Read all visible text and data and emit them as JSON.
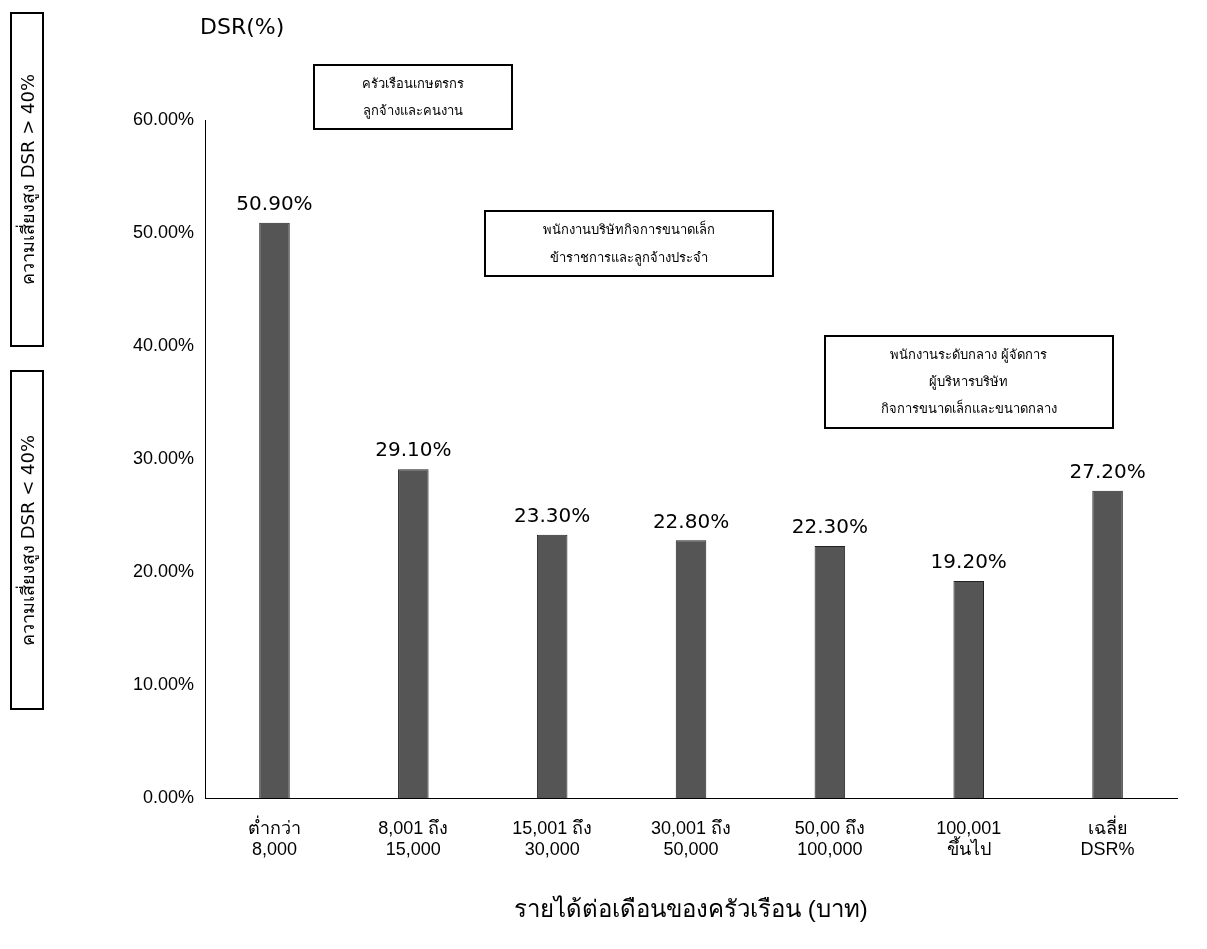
{
  "chart_data": {
    "type": "bar",
    "ylabel": "DSR(%)",
    "xlabel": "รายได้ต่อเดือนของครัวเรือน (บาท)",
    "categories": [
      "ต่ำกว่า\n8,000",
      "8,001 ถึง\n15,000",
      "15,001 ถึง\n30,000",
      "30,001 ถึง\n50,000",
      "50,00 ถึง\n100,000",
      "100,001\nขึ้นไป",
      "เฉลี่ย\nDSR%"
    ],
    "values": [
      50.9,
      29.1,
      23.3,
      22.8,
      22.3,
      19.2,
      27.2
    ],
    "value_labels": [
      "50.90%",
      "29.10%",
      "23.30%",
      "22.80%",
      "22.30%",
      "19.20%",
      "27.20%"
    ],
    "color": "#555555",
    "ylim": [
      0,
      60
    ],
    "yticks": [
      {
        "value": 0,
        "label": "0.00%"
      },
      {
        "value": 10,
        "label": "10.00%"
      },
      {
        "value": 20,
        "label": "20.00%"
      },
      {
        "value": 30,
        "label": "30.00%"
      },
      {
        "value": 40,
        "label": "40.00%"
      },
      {
        "value": 50,
        "label": "50.00%"
      },
      {
        "value": 60,
        "label": "60.00%"
      }
    ],
    "grid": false,
    "legend": false,
    "annotations": [
      "ครัวเรือนเกษตรกร\nลูกจ้างและคนงาน",
      "พนักงานบริษัทกิจการขนาดเล็ก\nข้าราชการและลูกจ้างประจำ",
      "พนักงานระดับกลาง ผู้จัดการ\nผู้บริหารบริษัท\nกิจการขนาดเล็กและขนาดกลาง",
      "ความเสี่ยงสูง DSR > 40%",
      "ความเสี่ยงสูง DSR < 40%"
    ]
  }
}
